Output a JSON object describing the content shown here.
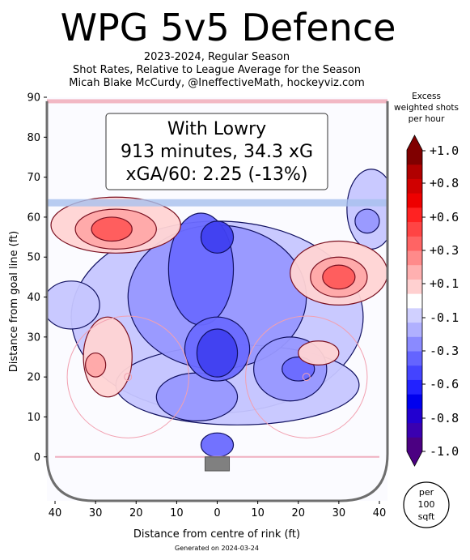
{
  "header": {
    "title": "WPG 5v5 Defence",
    "subtitle_lines": [
      "2023-2024, Regular Season",
      "Shot Rates, Relative to League Average for the Season",
      "Micah Blake McCurdy, @IneffectiveMath, hockeyviz.com"
    ]
  },
  "info_box": {
    "line1": "With Lowry",
    "line2": "913 minutes, 34.3 xG",
    "line3": "xGA/60: 2.25 (-13%)"
  },
  "footer": {
    "generated": "Generated on 2024-03-24"
  },
  "badge": {
    "line1": "per",
    "line2": "100",
    "line3": "sqft"
  },
  "chart_data": {
    "type": "heatmap",
    "xlabel": "Distance from centre of rink (ft)",
    "ylabel": "Distance from goal line (ft)",
    "xlim": [
      -42,
      42
    ],
    "ylim": [
      -11,
      90
    ],
    "x_ticks": [
      {
        "v": -40,
        "label": "40"
      },
      {
        "v": -30,
        "label": "30"
      },
      {
        "v": -20,
        "label": "20"
      },
      {
        "v": -10,
        "label": "10"
      },
      {
        "v": 0,
        "label": "0"
      },
      {
        "v": 10,
        "label": "10"
      },
      {
        "v": 20,
        "label": "20"
      },
      {
        "v": 30,
        "label": "30"
      },
      {
        "v": 40,
        "label": "40"
      }
    ],
    "y_ticks": [
      {
        "v": 0,
        "label": "0"
      },
      {
        "v": 10,
        "label": "10"
      },
      {
        "v": 20,
        "label": "20"
      },
      {
        "v": 30,
        "label": "30"
      },
      {
        "v": 40,
        "label": "40"
      },
      {
        "v": 50,
        "label": "50"
      },
      {
        "v": 60,
        "label": "60"
      },
      {
        "v": 70,
        "label": "70"
      },
      {
        "v": 80,
        "label": "80"
      },
      {
        "v": 90,
        "label": "90"
      }
    ],
    "colorbar": {
      "title_lines": [
        "Excess",
        "weighted shots",
        "per hour"
      ],
      "range": [
        -1.0,
        1.0
      ],
      "tick_labels": [
        "+1.0",
        "+0.8",
        "+0.6",
        "+0.3",
        "+0.1",
        "-0.1",
        "-0.3",
        "-0.6",
        "-0.8",
        "-1.0"
      ],
      "colors": [
        "#4b0082",
        "#3a00b0",
        "#2200d0",
        "#0000ee",
        "#2222ff",
        "#4444ff",
        "#6464ff",
        "#8a8aff",
        "#b0b0ff",
        "#d0d0ff",
        "#ffffff",
        "#ffd0d0",
        "#ffb0b0",
        "#ff8a8a",
        "#ff6464",
        "#ff4444",
        "#ff2222",
        "#ee0000",
        "#d00000",
        "#b00000",
        "#800000"
      ]
    },
    "regions": [
      {
        "kind": "excess",
        "sign": "neg",
        "level": 0.1,
        "cx": 0,
        "cy": 35,
        "rx": 36,
        "ry": 24
      },
      {
        "kind": "excess",
        "sign": "neg",
        "level": 0.1,
        "cx": 38,
        "cy": 62,
        "rx": 6,
        "ry": 10
      },
      {
        "kind": "excess",
        "sign": "neg",
        "level": 0.1,
        "cx": -36,
        "cy": 38,
        "rx": 7,
        "ry": 6
      },
      {
        "kind": "excess",
        "sign": "neg",
        "level": 0.1,
        "cx": 5,
        "cy": 18,
        "rx": 30,
        "ry": 10
      },
      {
        "kind": "excess",
        "sign": "neg",
        "level": 0.3,
        "cx": 0,
        "cy": 40,
        "rx": 22,
        "ry": 18
      },
      {
        "kind": "excess",
        "sign": "neg",
        "level": 0.3,
        "cx": 18,
        "cy": 22,
        "rx": 9,
        "ry": 8
      },
      {
        "kind": "excess",
        "sign": "neg",
        "level": 0.3,
        "cx": -5,
        "cy": 15,
        "rx": 10,
        "ry": 6
      },
      {
        "kind": "excess",
        "sign": "neg",
        "level": 0.3,
        "cx": 37,
        "cy": 59,
        "rx": 3,
        "ry": 3
      },
      {
        "kind": "excess",
        "sign": "neg",
        "level": 0.5,
        "cx": -4,
        "cy": 47,
        "rx": 8,
        "ry": 14
      },
      {
        "kind": "excess",
        "sign": "neg",
        "level": 0.5,
        "cx": 0,
        "cy": 27,
        "rx": 8,
        "ry": 8
      },
      {
        "kind": "excess",
        "sign": "neg",
        "level": 0.5,
        "cx": 20,
        "cy": 22,
        "rx": 4,
        "ry": 3
      },
      {
        "kind": "excess",
        "sign": "neg",
        "level": 0.7,
        "cx": 0,
        "cy": 55,
        "rx": 4,
        "ry": 4
      },
      {
        "kind": "excess",
        "sign": "neg",
        "level": 0.7,
        "cx": 0,
        "cy": 26,
        "rx": 5,
        "ry": 6
      },
      {
        "kind": "excess",
        "sign": "neg",
        "level": 0.5,
        "cx": 0,
        "cy": 3,
        "rx": 4,
        "ry": 3
      },
      {
        "kind": "excess",
        "sign": "pos",
        "level": 0.1,
        "cx": -25,
        "cy": 58,
        "rx": 16,
        "ry": 7
      },
      {
        "kind": "excess",
        "sign": "pos",
        "level": 0.3,
        "cx": -25,
        "cy": 57,
        "rx": 10,
        "ry": 5
      },
      {
        "kind": "excess",
        "sign": "pos",
        "level": 0.5,
        "cx": -26,
        "cy": 57,
        "rx": 5,
        "ry": 3
      },
      {
        "kind": "excess",
        "sign": "pos",
        "level": 0.1,
        "cx": 30,
        "cy": 46,
        "rx": 12,
        "ry": 8
      },
      {
        "kind": "excess",
        "sign": "pos",
        "level": 0.3,
        "cx": 30,
        "cy": 45,
        "rx": 7,
        "ry": 5
      },
      {
        "kind": "excess",
        "sign": "pos",
        "level": 0.5,
        "cx": 30,
        "cy": 45,
        "rx": 4,
        "ry": 3
      },
      {
        "kind": "excess",
        "sign": "pos",
        "level": 0.1,
        "cx": -27,
        "cy": 25,
        "rx": 6,
        "ry": 10
      },
      {
        "kind": "excess",
        "sign": "pos",
        "level": 0.3,
        "cx": -30,
        "cy": 23,
        "rx": 2.5,
        "ry": 3
      },
      {
        "kind": "excess",
        "sign": "pos",
        "level": 0.1,
        "cx": 25,
        "cy": 26,
        "rx": 5,
        "ry": 3
      }
    ]
  }
}
